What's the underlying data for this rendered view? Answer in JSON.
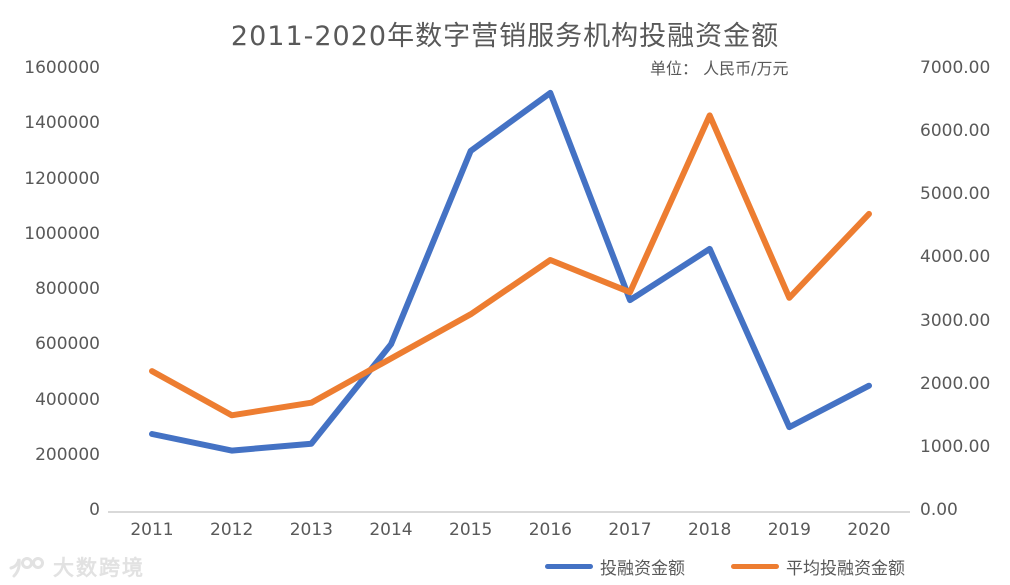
{
  "title": "2011-2020年数字营销服务机构投融资金额",
  "subtitle": "单位： 人民币/万元",
  "watermark": {
    "text": "大数跨境"
  },
  "colors": {
    "series_blue": "#4472C4",
    "series_orange": "#ED7D31",
    "axis_text": "#595959",
    "axis_line": "#D9D9D9",
    "watermark": "#E2E2E2"
  },
  "chart_data": {
    "type": "line",
    "title": "2011-2020年数字营销服务机构投融资金额",
    "subtitle": "单位： 人民币/万元",
    "x": [
      "2011",
      "2012",
      "2013",
      "2014",
      "2015",
      "2016",
      "2017",
      "2018",
      "2019",
      "2020"
    ],
    "series": [
      {
        "name": "投融资金额",
        "axis": "left",
        "color": "#4472C4",
        "values": [
          275000,
          215000,
          240000,
          600000,
          1300000,
          1510000,
          760000,
          945000,
          300000,
          450000
        ]
      },
      {
        "name": "平均投融资金额",
        "axis": "right",
        "color": "#ED7D31",
        "values": [
          2200,
          1500,
          1700,
          2400,
          3100,
          3960,
          3450,
          6250,
          3360,
          4690
        ]
      }
    ],
    "left_axis": {
      "min": 0,
      "max": 1600000,
      "step": 200000,
      "tick_labels": [
        "1600000",
        "1400000",
        "1200000",
        "1000000",
        "800000",
        "600000",
        "400000",
        "200000",
        "0"
      ]
    },
    "right_axis": {
      "min": 0,
      "max": 7000,
      "step": 1000,
      "tick_labels": [
        "7000.00",
        "6000.00",
        "5000.00",
        "4000.00",
        "3000.00",
        "2000.00",
        "1000.00",
        "0.00"
      ]
    },
    "xlabel": "",
    "ylabel": "",
    "grid": false,
    "legend_position": "bottom-right"
  }
}
